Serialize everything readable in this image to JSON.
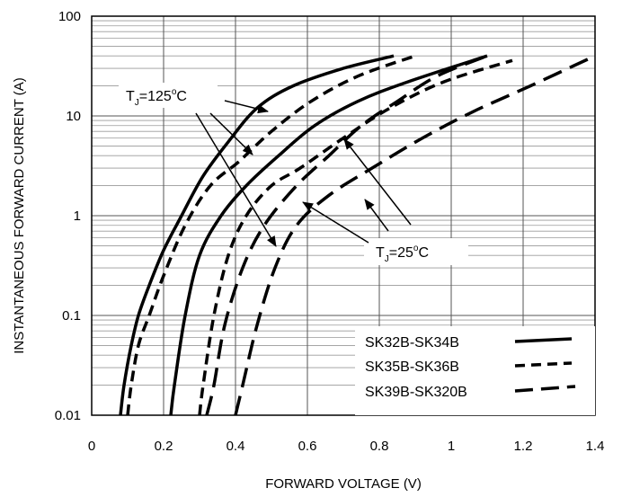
{
  "chart_data": {
    "type": "line",
    "xlabel": "FORWARD VOLTAGE (V)",
    "ylabel": "INSTANTANEOUS FORWARD CURRENT (A)",
    "xlim": [
      0,
      1.4
    ],
    "ylim": [
      0.01,
      100
    ],
    "y_scale": "log",
    "grid": true,
    "x_ticks": [
      "0",
      "0.2",
      "0.4",
      "0.6",
      "0.8",
      "1",
      "1.2",
      "1.4"
    ],
    "y_ticks": [
      "0.01",
      "0.1",
      "1",
      "10",
      "100"
    ],
    "legend_position": "bottom-right",
    "annotations": [
      {
        "id": "tj125",
        "label": "T",
        "sub": "J",
        "text": "=125",
        "sup": "o",
        "unit": "C"
      },
      {
        "id": "tj25",
        "label": "T",
        "sub": "J",
        "text": "=25",
        "sup": "o",
        "unit": "C"
      }
    ],
    "series": [
      {
        "name": "SK32B-SK34B",
        "style": "solid",
        "temperature": "125",
        "x": [
          0.08,
          0.09,
          0.11,
          0.13,
          0.16,
          0.2,
          0.25,
          0.31,
          0.38,
          0.46,
          0.56,
          0.7,
          0.84
        ],
        "y": [
          0.01,
          0.02,
          0.05,
          0.1,
          0.2,
          0.45,
          1,
          2.5,
          5.5,
          12,
          20,
          30,
          40
        ]
      },
      {
        "name": "SK32B-SK34B",
        "style": "solid",
        "temperature": "25",
        "x": [
          0.22,
          0.23,
          0.26,
          0.3,
          0.36,
          0.43,
          0.52,
          0.62,
          0.74,
          0.88,
          1.1
        ],
        "y": [
          0.01,
          0.02,
          0.1,
          0.4,
          1,
          2,
          4,
          8,
          14,
          22,
          40
        ]
      },
      {
        "name": "SK35B-SK36B",
        "style": "dashed",
        "temperature": "125",
        "x": [
          0.1,
          0.11,
          0.13,
          0.16,
          0.2,
          0.26,
          0.33,
          0.41,
          0.5,
          0.61,
          0.74,
          0.9
        ],
        "y": [
          0.01,
          0.02,
          0.05,
          0.1,
          0.25,
          0.8,
          2,
          3.5,
          7,
          14,
          25,
          40
        ]
      },
      {
        "name": "SK35B-SK36B",
        "style": "dashed",
        "temperature": "25",
        "x": [
          0.3,
          0.31,
          0.34,
          0.38,
          0.43,
          0.5,
          0.58,
          0.7,
          0.83,
          0.98,
          1.17
        ],
        "y": [
          0.01,
          0.02,
          0.1,
          0.4,
          1,
          2,
          3,
          6,
          12,
          22,
          36
        ]
      },
      {
        "name": "SK39B-SK320B",
        "style": "longdash",
        "temperature": "125",
        "x": [
          0.32,
          0.34,
          0.37,
          0.42,
          0.48,
          0.57,
          0.66,
          0.75,
          0.85,
          0.96,
          1.1
        ],
        "y": [
          0.01,
          0.02,
          0.08,
          0.3,
          0.8,
          2,
          4,
          8,
          14,
          25,
          40
        ]
      },
      {
        "name": "SK39B-SK320B",
        "style": "longdash",
        "temperature": "25",
        "x": [
          0.4,
          0.42,
          0.46,
          0.51,
          0.57,
          0.66,
          0.78,
          0.92,
          1.06,
          1.22,
          1.4
        ],
        "y": [
          0.01,
          0.02,
          0.08,
          0.3,
          0.8,
          1.6,
          3,
          6,
          11,
          20,
          40
        ]
      }
    ]
  }
}
